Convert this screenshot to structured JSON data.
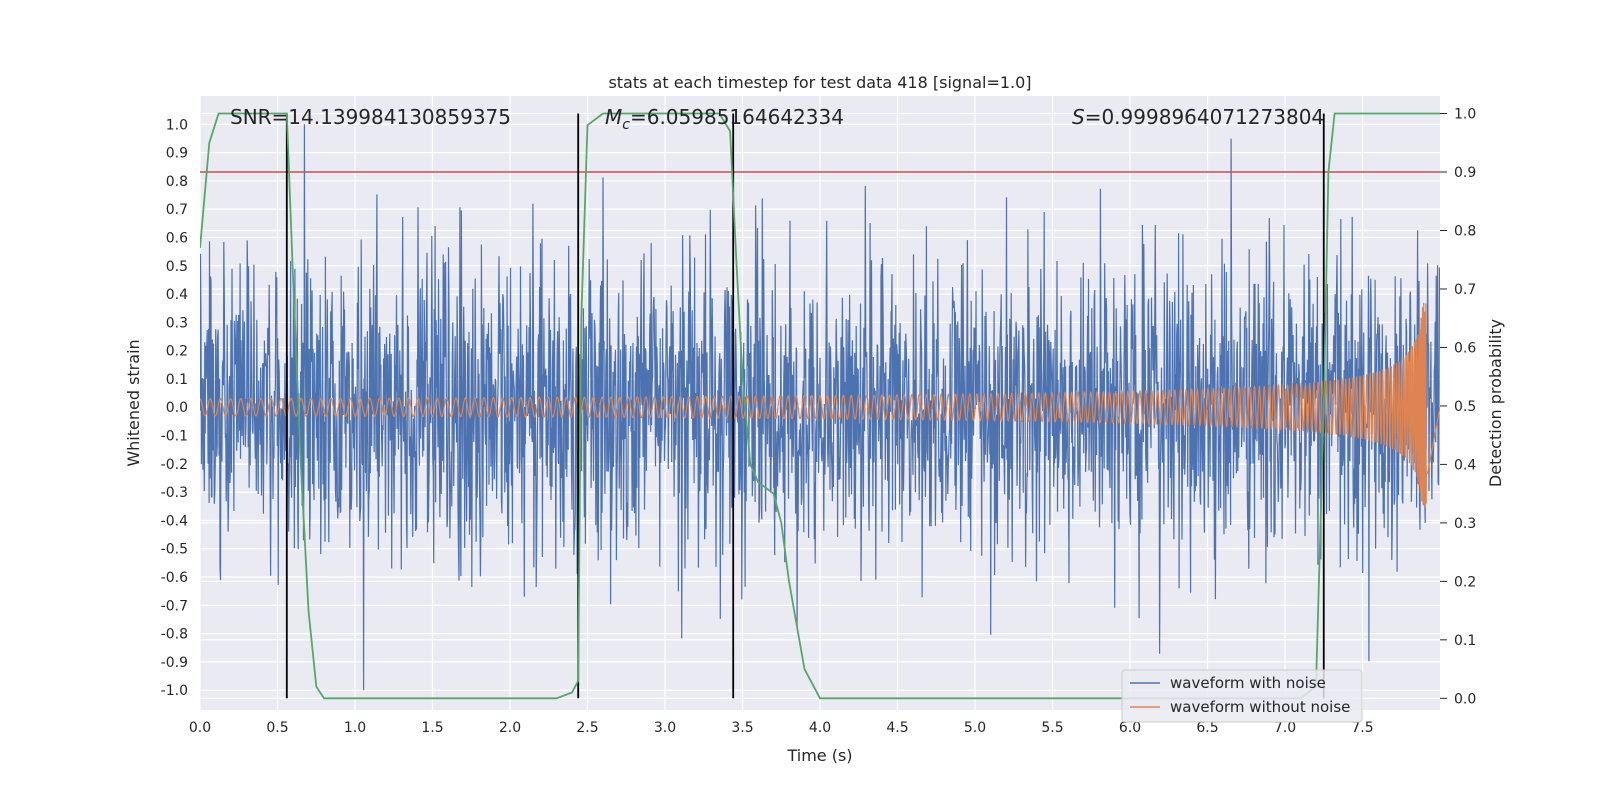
{
  "chart_data": {
    "type": "line",
    "title": "stats at each timestep for test data 418 [signal=1.0]",
    "xlabel": "Time (s)",
    "ylabel": "Whitened strain",
    "ylabel_right": "Detection probability",
    "xlim": [
      0.0,
      8.0
    ],
    "ylim": [
      -1.07,
      1.1
    ],
    "ylim_right": [
      -0.02,
      1.03
    ],
    "x_ticks": [
      "0.0",
      "0.5",
      "1.0",
      "1.5",
      "2.0",
      "2.5",
      "3.0",
      "3.5",
      "4.0",
      "4.5",
      "5.0",
      "5.5",
      "6.0",
      "6.5",
      "7.0",
      "7.5"
    ],
    "y_ticks": [
      "1.0",
      "0.9",
      "0.8",
      "0.7",
      "0.6",
      "0.5",
      "0.4",
      "0.3",
      "0.2",
      "0.1",
      "0.0",
      "-0.1",
      "-0.2",
      "-0.3",
      "-0.4",
      "-0.5",
      "-0.6",
      "-0.7",
      "-0.8",
      "-0.9",
      "-1.0"
    ],
    "y_right_ticks": [
      "1.0",
      "0.9",
      "0.8",
      "0.7",
      "0.6",
      "0.5",
      "0.4",
      "0.3",
      "0.2",
      "0.1",
      "0.0"
    ],
    "annotations": {
      "snr": "SNR=14.139984130859375",
      "mc_symbol": "M",
      "mc_subscript": "c",
      "mc_value": "=6.05985164642334",
      "s_symbol": "S",
      "s_value": "=0.9998964071273804"
    },
    "threshold": {
      "value": 0.9,
      "axis": "right",
      "color": "#c44e52"
    },
    "vertical_lines": [
      0.56,
      2.44,
      3.44,
      7.25
    ],
    "vertical_line_range": [
      0.0,
      1.0
    ],
    "series": [
      {
        "name": "waveform with noise",
        "color": "#4c72b0",
        "kind": "noise",
        "t_end": 8.0,
        "envelope_abs": 1.0
      },
      {
        "name": "waveform without noise",
        "color": "#dd8452",
        "kind": "chirp",
        "t_end": 7.92,
        "amplitude_start": 0.03,
        "amplitude_peak": 0.37
      },
      {
        "name": "detection probability",
        "color": "#55a868",
        "axis": "right",
        "x": [
          0.0,
          0.06,
          0.12,
          0.2,
          0.3,
          0.42,
          0.5,
          0.56,
          0.6,
          0.65,
          0.7,
          0.75,
          0.8,
          1.0,
          1.5,
          2.0,
          2.3,
          2.4,
          2.44,
          2.46,
          2.5,
          2.6,
          2.8,
          3.2,
          3.35,
          3.42,
          3.46,
          3.5,
          3.55,
          3.6,
          3.7,
          3.75,
          3.8,
          3.9,
          4.0,
          4.5,
          5.0,
          6.0,
          7.0,
          7.1,
          7.2,
          7.25,
          7.28,
          7.32,
          7.5,
          8.0
        ],
        "y": [
          0.77,
          0.95,
          1.0,
          1.0,
          1.0,
          1.0,
          1.0,
          1.0,
          0.72,
          0.4,
          0.15,
          0.02,
          0.0,
          0.0,
          0.0,
          0.0,
          0.0,
          0.01,
          0.03,
          0.65,
          0.98,
          1.0,
          1.0,
          1.0,
          1.0,
          0.97,
          0.75,
          0.55,
          0.4,
          0.37,
          0.35,
          0.3,
          0.2,
          0.05,
          0.0,
          0.0,
          0.0,
          0.0,
          0.0,
          0.0,
          0.02,
          0.5,
          0.9,
          1.0,
          1.0,
          1.0
        ]
      }
    ],
    "legend": {
      "position": "bottom-right",
      "entries": [
        "waveform with noise",
        "waveform without noise"
      ]
    }
  }
}
